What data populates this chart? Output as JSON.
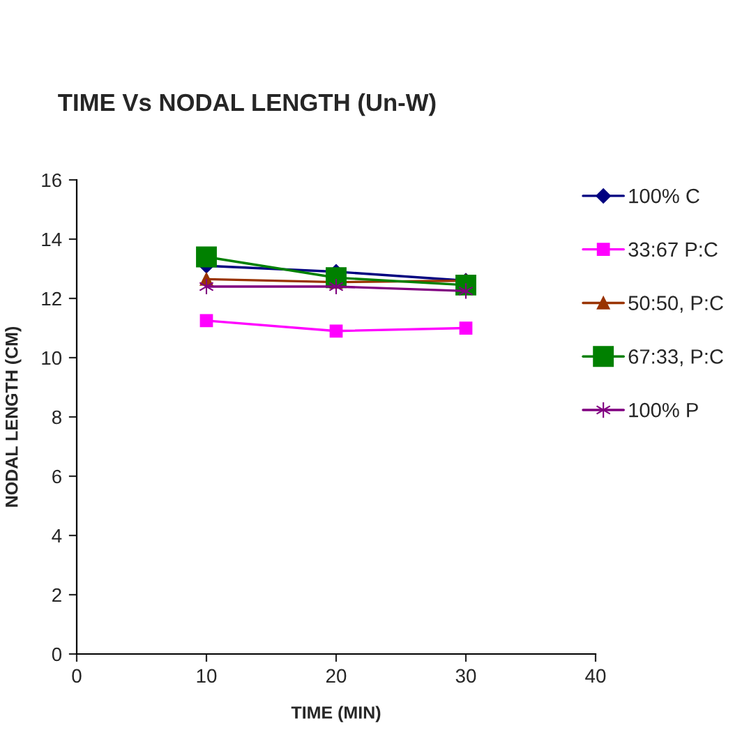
{
  "chart_data": {
    "type": "line",
    "title": "TIME Vs NODAL LENGTH (Un-W)",
    "xlabel": "TIME (MIN)",
    "ylabel": "NODAL LENGTH (CM)",
    "x": [
      10,
      20,
      30
    ],
    "xlim": [
      0,
      40
    ],
    "xticks": [
      0,
      10,
      20,
      30,
      40
    ],
    "ylim": [
      0,
      16
    ],
    "yticks": [
      0,
      2,
      4,
      6,
      8,
      10,
      12,
      14,
      16
    ],
    "grid": false,
    "legend": "top right",
    "series": [
      {
        "name": "100% C",
        "color": "#000080",
        "marker": "diamond",
        "values": [
          13.1,
          12.9,
          12.6
        ]
      },
      {
        "name": "33:67 P:C",
        "color": "#ff00ff",
        "marker": "square",
        "values": [
          11.25,
          10.9,
          11.0
        ]
      },
      {
        "name": "50:50, P:C",
        "color": "#993300",
        "marker": "triangle",
        "values": [
          12.65,
          12.55,
          12.6
        ]
      },
      {
        "name": "67:33, P:C",
        "color": "#008000",
        "marker": "square",
        "values": [
          13.4,
          12.7,
          12.45
        ]
      },
      {
        "name": "100% P",
        "color": "#800080",
        "marker": "cross",
        "values": [
          12.4,
          12.4,
          12.25
        ]
      }
    ]
  }
}
